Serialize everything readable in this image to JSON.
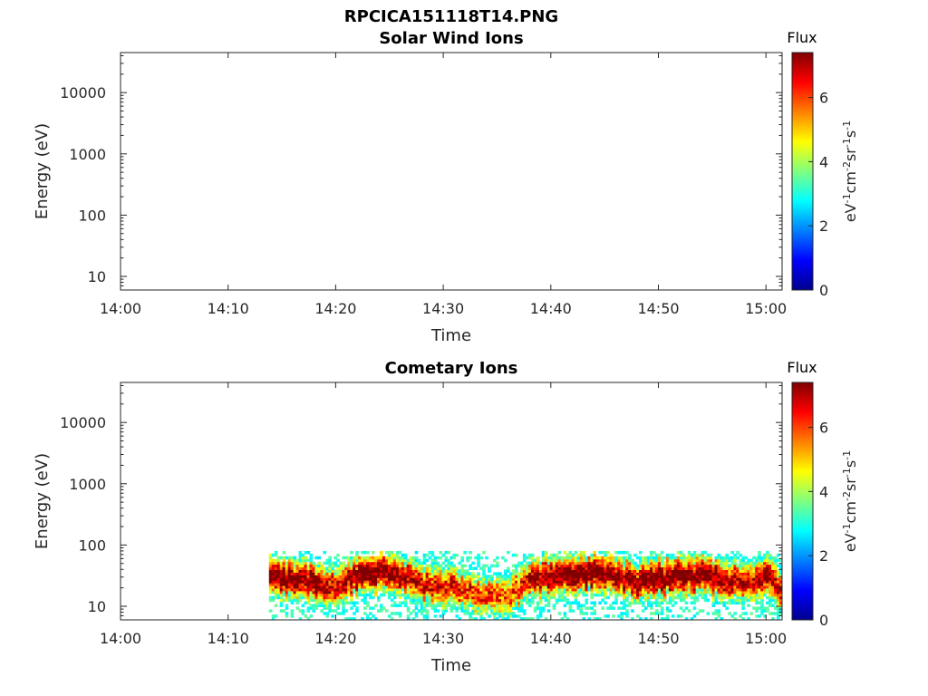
{
  "figure": {
    "title_line1": "RPCICA151118T14.PNG"
  },
  "chart_data": [
    {
      "type": "heatmap",
      "title": "Solar Wind Ions",
      "xlabel": "Time",
      "ylabel": "Energy (eV)",
      "x_ticks": [
        "14:00",
        "14:10",
        "14:20",
        "14:30",
        "14:40",
        "14:50",
        "15:00"
      ],
      "x_range_minutes": [
        0,
        61.5
      ],
      "y_scale": "log",
      "y_ticks": [
        "10",
        "100",
        "1000",
        "10000"
      ],
      "y_range": [
        6,
        45000
      ],
      "colorbar": {
        "title": "Flux",
        "label": "eV-1cm-2sr-1s-1",
        "label_parts": [
          "eV",
          "-1",
          "cm",
          "-2",
          "sr",
          "-1",
          "s",
          "-1"
        ],
        "ticks": [
          "0",
          "2",
          "4",
          "6"
        ],
        "range": [
          0,
          7.4
        ],
        "colormap": "jet"
      },
      "data_present": false
    },
    {
      "type": "heatmap",
      "title": "Cometary Ions",
      "xlabel": "Time",
      "ylabel": "Energy (eV)",
      "x_ticks": [
        "14:00",
        "14:10",
        "14:20",
        "14:30",
        "14:40",
        "14:50",
        "15:00"
      ],
      "x_range_minutes": [
        0,
        61.5
      ],
      "y_scale": "log",
      "y_ticks": [
        "10",
        "100",
        "1000",
        "10000"
      ],
      "y_range": [
        6,
        45000
      ],
      "colorbar": {
        "title": "Flux",
        "label": "eV-1cm-2sr-1s-1",
        "label_parts": [
          "eV",
          "-1",
          "cm",
          "-2",
          "sr",
          "-1",
          "s",
          "-1"
        ],
        "ticks": [
          "0",
          "2",
          "4",
          "6"
        ],
        "range": [
          0,
          7.4
        ],
        "colormap": "jet"
      },
      "data_present": true,
      "data_time_range_minutes": [
        13.8,
        61.5
      ],
      "data_energy_range_eV": [
        6,
        80
      ],
      "ridge_energy_eV_by_minute": {
        "minutes": [
          14,
          16,
          18,
          20,
          22,
          24,
          26,
          28,
          30,
          32,
          34,
          36,
          38,
          40,
          42,
          44,
          46,
          48,
          50,
          52,
          54,
          56,
          58,
          60,
          61.5
        ],
        "energy": [
          30,
          28,
          24,
          20,
          32,
          35,
          30,
          22,
          20,
          18,
          14,
          14,
          26,
          30,
          32,
          35,
          30,
          24,
          28,
          30,
          32,
          26,
          24,
          30,
          15
        ]
      },
      "peak_flux_by_minute": {
        "minutes": [
          14,
          16,
          18,
          20,
          22,
          24,
          26,
          28,
          30,
          32,
          34,
          36,
          38,
          40,
          42,
          44,
          46,
          48,
          50,
          52,
          54,
          56,
          58,
          60,
          61.5
        ],
        "flux": [
          7.0,
          7.2,
          7.0,
          6.2,
          7.2,
          7.3,
          6.8,
          6.0,
          6.0,
          5.8,
          5.5,
          5.2,
          6.5,
          7.0,
          7.2,
          7.3,
          7.0,
          6.9,
          7.2,
          7.2,
          7.3,
          6.8,
          6.2,
          7.0,
          6.0
        ]
      }
    }
  ]
}
